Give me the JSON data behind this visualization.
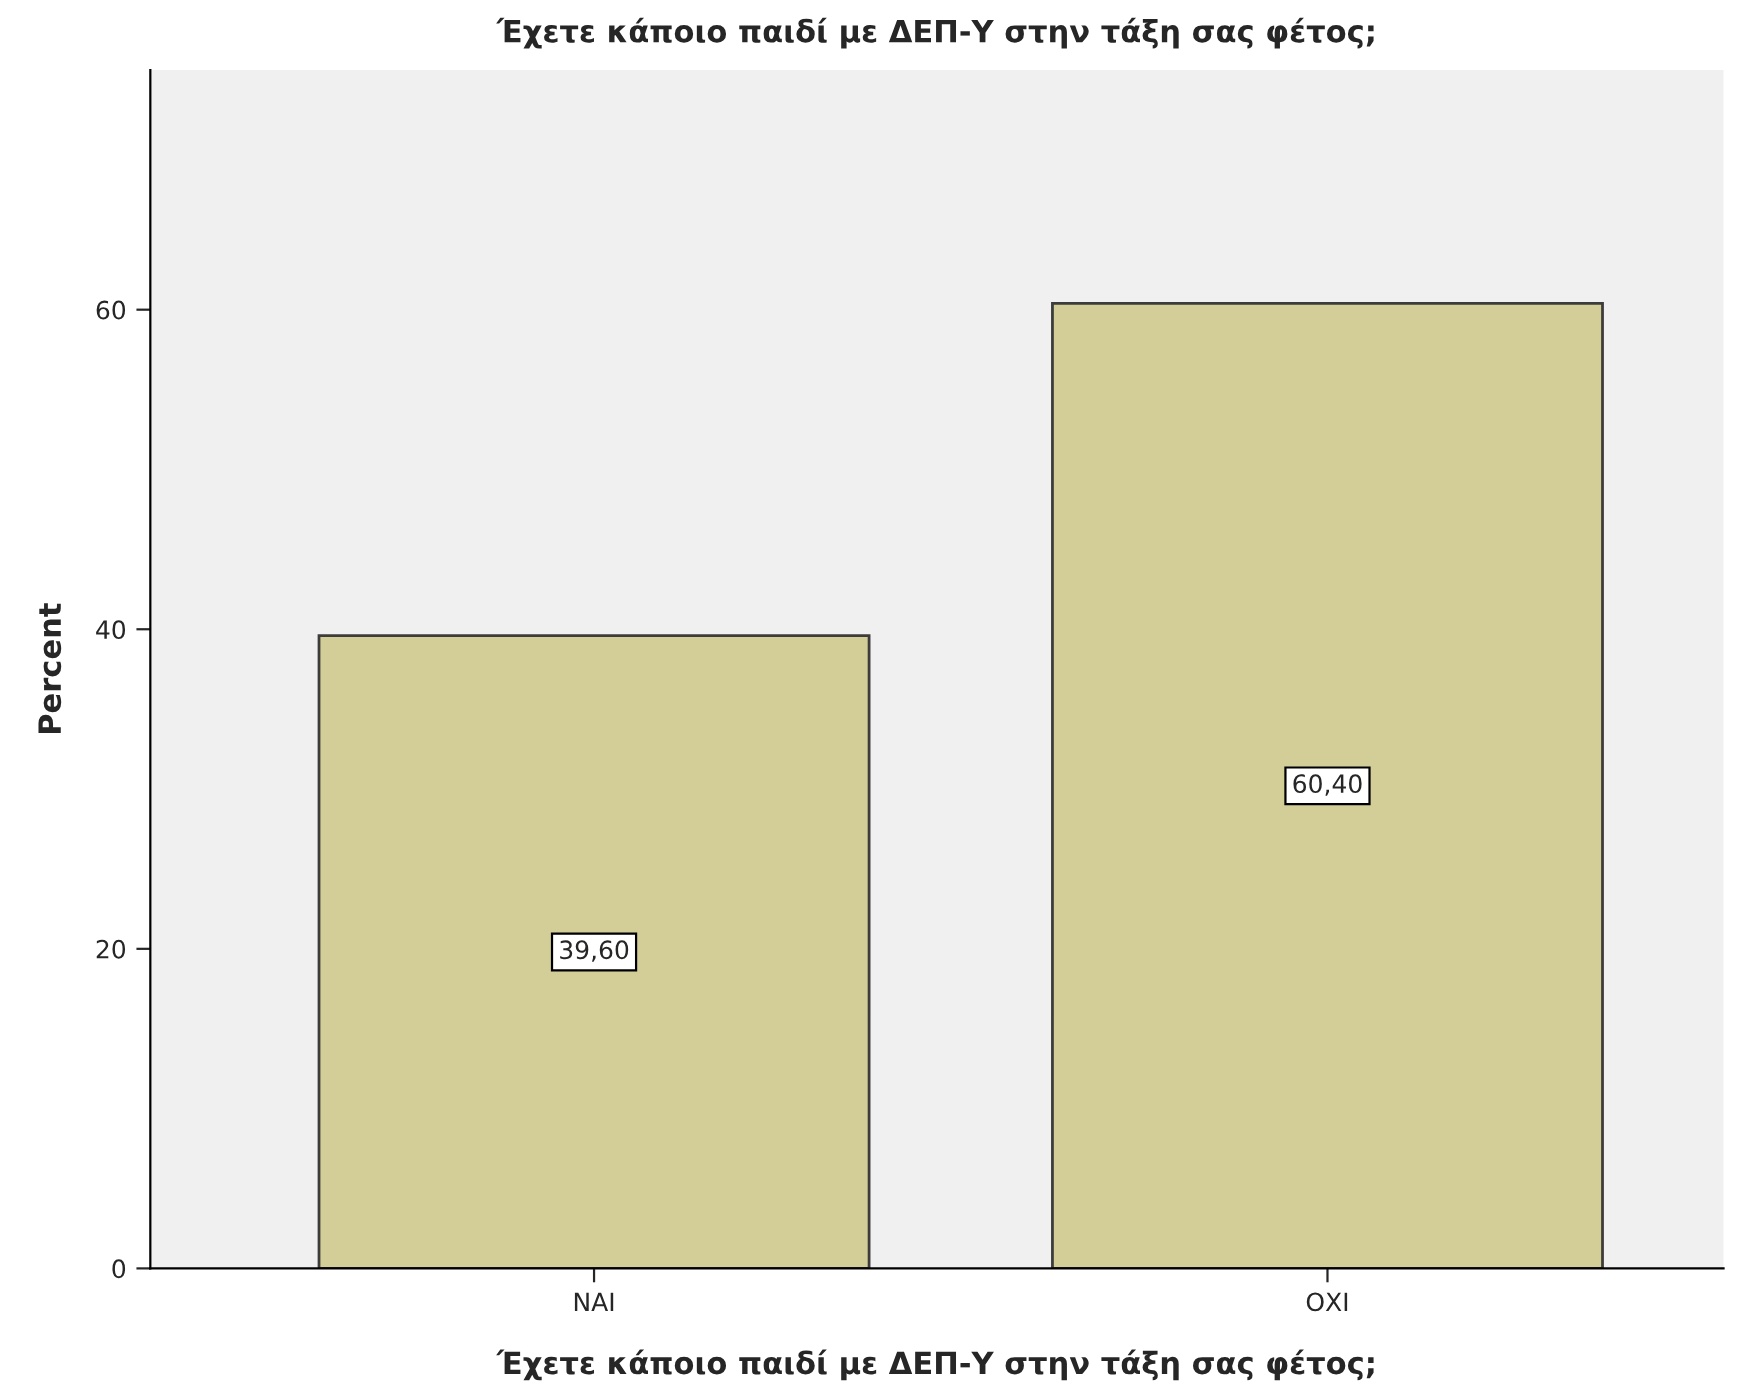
{
  "chart_data": {
    "type": "bar",
    "title": "Έχετε κάποιο παιδί με ΔΕΠ-Υ στην τάξη σας φέτος;",
    "xlabel": "Έχετε κάποιο παιδί με ΔΕΠ-Υ στην τάξη σας φέτος;",
    "ylabel": "Percent",
    "categories": [
      "ΝΑΙ",
      "ΟΧΙ"
    ],
    "values": [
      39.6,
      60.4
    ],
    "value_labels": [
      "39,60",
      "60,40"
    ],
    "color": "#d3ce97",
    "ylim": [
      0,
      75
    ],
    "yticks": [
      0,
      20,
      40,
      60
    ],
    "grid": false,
    "legend": false
  }
}
